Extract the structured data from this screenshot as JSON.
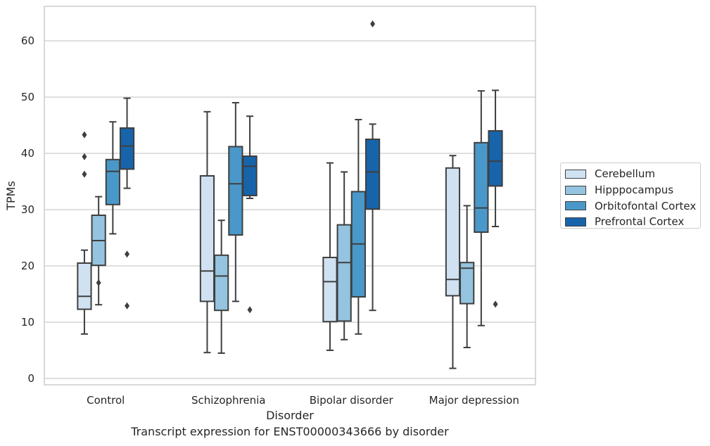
{
  "chart_data": {
    "type": "box",
    "title": "Transcript expression for ENST00000343666 by disorder",
    "xlabel": "Disorder",
    "ylabel": "TPMs",
    "ylim": [
      -1,
      66
    ],
    "yticks": [
      0,
      10,
      20,
      30,
      40,
      50,
      60
    ],
    "grid": "horizontal",
    "legend_position": "right",
    "categories": [
      "Control",
      "Schizophrenia",
      "Bipolar disorder",
      "Major depression"
    ],
    "series": [
      {
        "name": "Cerebellum",
        "color": "#d0e1f2",
        "boxes": [
          {
            "whisker_low": 7.9,
            "q1": 12.3,
            "median": 14.6,
            "q3": 20.5,
            "whisker_high": 22.8,
            "outliers": [
              43.3,
              39.4,
              36.3
            ]
          },
          {
            "whisker_low": 4.6,
            "q1": 13.7,
            "median": 19.1,
            "q3": 36.0,
            "whisker_high": 47.4,
            "outliers": []
          },
          {
            "whisker_low": 5.0,
            "q1": 10.1,
            "median": 17.2,
            "q3": 21.5,
            "whisker_high": 38.3,
            "outliers": []
          },
          {
            "whisker_low": 1.8,
            "q1": 14.7,
            "median": 17.6,
            "q3": 37.4,
            "whisker_high": 39.6,
            "outliers": []
          }
        ]
      },
      {
        "name": "Hipppocampus",
        "color": "#94c4df",
        "boxes": [
          {
            "whisker_low": 13.1,
            "q1": 20.1,
            "median": 24.5,
            "q3": 29.0,
            "whisker_high": 32.3,
            "outliers": [
              17.0
            ]
          },
          {
            "whisker_low": 4.5,
            "q1": 12.1,
            "median": 18.2,
            "q3": 21.9,
            "whisker_high": 28.1,
            "outliers": []
          },
          {
            "whisker_low": 6.9,
            "q1": 10.2,
            "median": 20.6,
            "q3": 27.3,
            "whisker_high": 36.7,
            "outliers": []
          },
          {
            "whisker_low": 5.5,
            "q1": 13.3,
            "median": 19.6,
            "q3": 20.6,
            "whisker_high": 30.7,
            "outliers": []
          }
        ]
      },
      {
        "name": "Orbitofontal Cortex",
        "color": "#4a98c9",
        "boxes": [
          {
            "whisker_low": 25.7,
            "q1": 30.9,
            "median": 36.8,
            "q3": 38.9,
            "whisker_high": 45.6,
            "outliers": []
          },
          {
            "whisker_low": 13.7,
            "q1": 25.5,
            "median": 34.6,
            "q3": 41.2,
            "whisker_high": 49.0,
            "outliers": []
          },
          {
            "whisker_low": 7.9,
            "q1": 14.5,
            "median": 23.9,
            "q3": 33.2,
            "whisker_high": 46.0,
            "outliers": []
          },
          {
            "whisker_low": 9.4,
            "q1": 26.0,
            "median": 30.3,
            "q3": 41.9,
            "whisker_high": 51.1,
            "outliers": []
          }
        ]
      },
      {
        "name": "Prefrontal Cortex",
        "color": "#1764ab",
        "boxes": [
          {
            "whisker_low": 33.8,
            "q1": 37.2,
            "median": 41.3,
            "q3": 44.5,
            "whisker_high": 49.8,
            "outliers": [
              22.1,
              12.9
            ]
          },
          {
            "whisker_low": 32.0,
            "q1": 32.5,
            "median": 37.7,
            "q3": 39.5,
            "whisker_high": 46.6,
            "outliers": [
              12.2
            ]
          },
          {
            "whisker_low": 12.1,
            "q1": 30.1,
            "median": 36.7,
            "q3": 42.5,
            "whisker_high": 45.2,
            "outliers": [
              63.0
            ]
          },
          {
            "whisker_low": 27.0,
            "q1": 34.2,
            "median": 38.6,
            "q3": 44.0,
            "whisker_high": 51.2,
            "outliers": [
              13.2
            ]
          }
        ]
      }
    ]
  }
}
